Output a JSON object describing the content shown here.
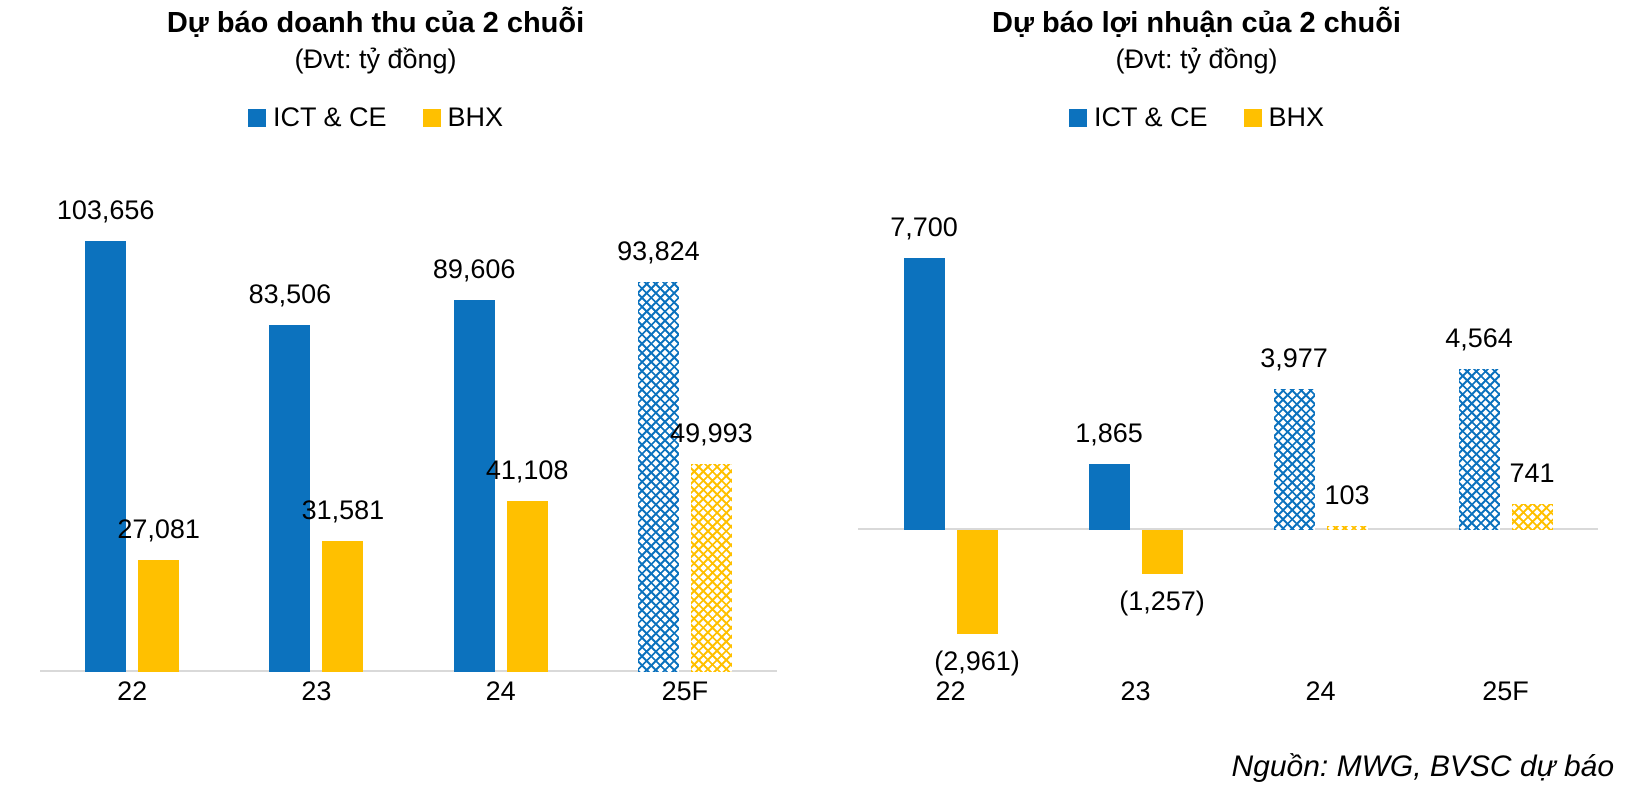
{
  "source": "Nguồn: MWG, BVSC dự báo",
  "colors": {
    "ict_ce": "#0C72BE",
    "bhx": "#FFC000",
    "axis": "#D9D9D9",
    "background": "#FFFFFF",
    "text": "#000000"
  },
  "chart_data": [
    {
      "type": "bar",
      "title": "Dự báo doanh thu của 2 chuỗi",
      "subtitle": "(Đvt: tỷ đồng)",
      "unit": "tỷ đồng",
      "categories": [
        "22",
        "23",
        "24",
        "25F"
      ],
      "series": [
        {
          "name": "ICT & CE",
          "color": "#0C72BE",
          "values": [
            103656,
            83506,
            89606,
            93824
          ],
          "labels": [
            "103,656",
            "83,506",
            "89,606",
            "93,824"
          ]
        },
        {
          "name": "BHX",
          "color": "#FFC000",
          "values": [
            27081,
            31581,
            41108,
            49993
          ],
          "labels": [
            "27,081",
            "31,581",
            "41,108",
            "49,993"
          ]
        }
      ],
      "patterned_categories": [
        "25F"
      ],
      "ylim": [
        0,
        104000
      ],
      "grid": false,
      "legend_position": "top"
    },
    {
      "type": "bar",
      "title": "Dự báo lợi nhuận của 2 chuỗi",
      "subtitle": "(Đvt: tỷ đồng)",
      "unit": "tỷ đồng",
      "categories": [
        "22",
        "23",
        "24",
        "25F"
      ],
      "series": [
        {
          "name": "ICT & CE",
          "color": "#0C72BE",
          "values": [
            7700,
            1865,
            3977,
            4564
          ],
          "labels": [
            "7,700",
            "1,865",
            "3,977",
            "4,564"
          ]
        },
        {
          "name": "BHX",
          "color": "#FFC000",
          "values": [
            -2961,
            -1257,
            103,
            741
          ],
          "labels": [
            "(2,961)",
            "(1,257)",
            "103",
            "741"
          ]
        }
      ],
      "patterned_categories": [
        "24",
        "25F"
      ],
      "ylim": [
        -3100,
        7900
      ],
      "grid": false,
      "legend_position": "top"
    }
  ]
}
